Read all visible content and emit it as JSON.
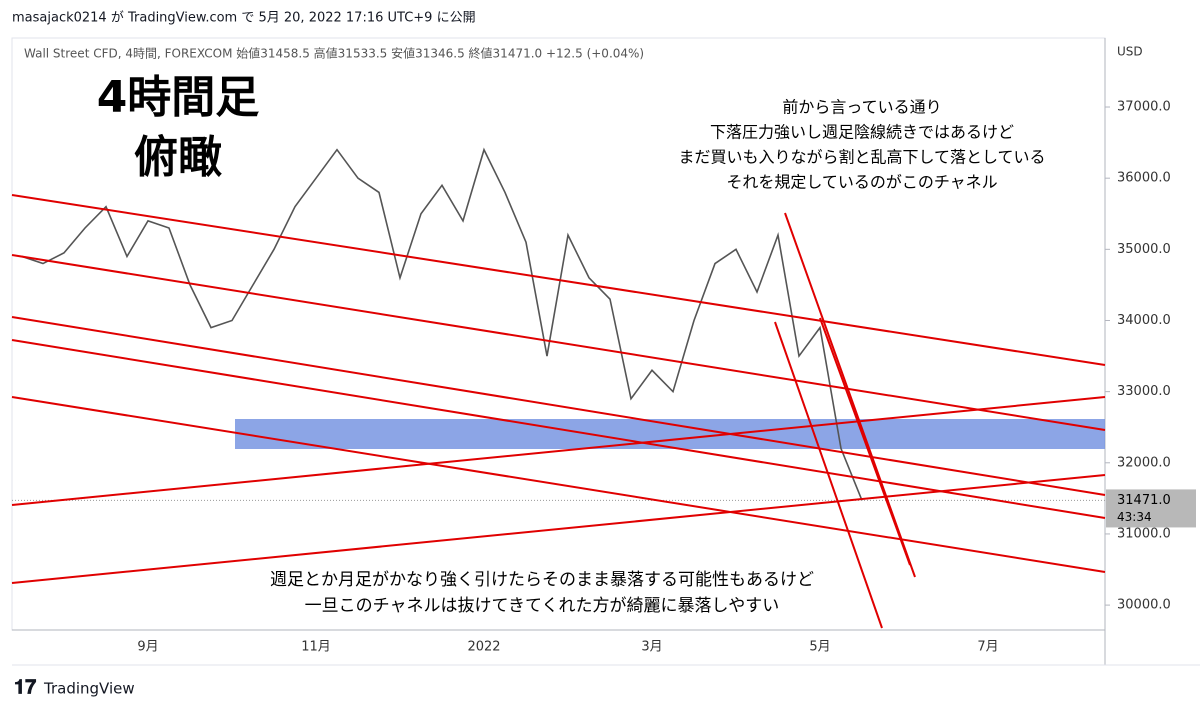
{
  "chart_data": {
    "type": "line",
    "header": "masajack0214 が TradingView.com で 5月 20, 2022 17:16 UTC+9 に公開",
    "legend_line": "Wall Street CFD, 4時間, FOREXCOM  始値31458.5  高値31533.5  安値31346.5  終値31471.0  +12.5 (+0.04%)",
    "title_lines": [
      "4時間足",
      "俯瞰"
    ],
    "annotation_top": [
      "前から言っている通り",
      "下落圧力強いし週足陰線続きではあるけど",
      "まだ買いも入りながら割と乱高下して落としている",
      "それを規定しているのがこのチャネル"
    ],
    "annotation_bottom": [
      "週足とか月足がかなり強く引けたらそのまま暴落する可能性もあるけど",
      "一旦このチャネルは抜けてきてくれた方が綺麗に暴落しやすい"
    ],
    "currency": "USD",
    "footer": "TradingView",
    "categories": [
      null,
      null,
      null,
      null,
      null,
      null,
      "9月",
      null,
      null,
      null,
      null,
      null,
      null,
      null,
      "11月",
      null,
      null,
      null,
      null,
      null,
      null,
      null,
      "2022",
      null,
      null,
      null,
      null,
      null,
      null,
      null,
      "3月",
      null,
      null,
      null,
      null,
      null,
      null,
      null,
      "5月",
      null,
      null,
      null,
      null,
      null,
      null,
      null,
      "7月",
      null,
      null,
      null,
      null,
      null
    ],
    "series": [
      {
        "color": "#555555",
        "values": [
          34900,
          34800,
          34950,
          35300,
          35600,
          34900,
          35400,
          35300,
          34500,
          33900,
          34000,
          34500,
          35000,
          35600,
          36000,
          36400,
          36000,
          35800,
          34600,
          35500,
          35900,
          35400,
          36400,
          35800,
          35100,
          33500,
          35200,
          34600,
          34300,
          32900,
          33300,
          33000,
          34000,
          34800,
          35000,
          34400,
          35200,
          33500,
          33900,
          32200,
          31471,
          null,
          null,
          null,
          null,
          null,
          null,
          null,
          null,
          null,
          null,
          null
        ]
      }
    ],
    "last_price": {
      "value": 31471,
      "label": "31471.0"
    },
    "countdown": "43:34",
    "ylim": [
      29650,
      37970
    ],
    "yticks": [
      {
        "value": 30000,
        "label": "30000.0"
      },
      {
        "value": 31000,
        "label": "31000.0"
      },
      {
        "value": 32000,
        "label": "32000.0"
      },
      {
        "value": 33000,
        "label": "33000.0"
      },
      {
        "value": 34000,
        "label": "34000.0"
      },
      {
        "value": 35000,
        "label": "35000.0"
      },
      {
        "value": 36000,
        "label": "36000.0"
      },
      {
        "value": 37000,
        "label": "37000.0"
      }
    ]
  }
}
